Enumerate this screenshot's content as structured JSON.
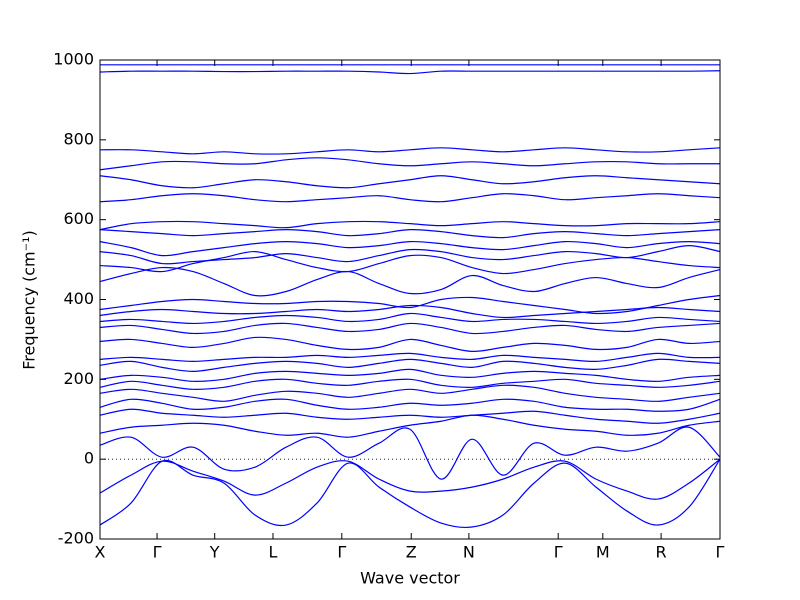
{
  "chart_data": {
    "type": "line",
    "xlabel": "Wave vector",
    "ylabel": "Frequency (cm⁻¹)",
    "color": "#0000ff",
    "xlim": [
      0,
      10
    ],
    "ylim": [
      -200,
      1000
    ],
    "xticks": [
      {
        "value": 0,
        "label": "X"
      },
      {
        "value": 0.92,
        "label": "Γ"
      },
      {
        "value": 1.85,
        "label": "Y"
      },
      {
        "value": 2.79,
        "label": "L"
      },
      {
        "value": 3.9,
        "label": "Γ"
      },
      {
        "value": 5.02,
        "label": "Z"
      },
      {
        "value": 5.95,
        "label": "N"
      },
      {
        "value": 7.39,
        "label": "Γ"
      },
      {
        "value": 8.11,
        "label": "M"
      },
      {
        "value": 9.05,
        "label": "R"
      },
      {
        "value": 10,
        "label": "Γ"
      }
    ],
    "yticks": [
      -200,
      0,
      200,
      400,
      600,
      800,
      1000
    ],
    "reference_line": 0,
    "x": [
      0,
      0.5,
      1,
      1.5,
      2,
      2.5,
      3,
      3.5,
      4,
      4.5,
      5,
      5.5,
      6,
      6.5,
      7,
      7.5,
      8,
      8.5,
      9,
      9.5,
      10
    ],
    "series": [
      {
        "values": [
          -165,
          -110,
          -5,
          -40,
          -60,
          -140,
          -165,
          -110,
          -10,
          -70,
          -120,
          -160,
          -170,
          -140,
          -60,
          -10,
          -70,
          -130,
          -165,
          -120,
          0
        ]
      },
      {
        "values": [
          -85,
          -40,
          -5,
          -30,
          -55,
          -90,
          -60,
          -20,
          -5,
          -50,
          -80,
          -80,
          -70,
          -50,
          -20,
          -5,
          -50,
          -80,
          -100,
          -60,
          0
        ]
      },
      {
        "values": [
          35,
          55,
          5,
          30,
          -25,
          -20,
          30,
          55,
          5,
          40,
          75,
          -50,
          50,
          -40,
          40,
          10,
          30,
          20,
          40,
          80,
          5
        ]
      },
      {
        "values": [
          65,
          80,
          85,
          90,
          85,
          70,
          60,
          65,
          55,
          70,
          85,
          95,
          110,
          100,
          85,
          75,
          70,
          60,
          65,
          85,
          95
        ]
      },
      {
        "values": [
          110,
          125,
          115,
          110,
          105,
          110,
          115,
          105,
          100,
          105,
          110,
          105,
          110,
          115,
          120,
          110,
          100,
          95,
          90,
          100,
          115
        ]
      },
      {
        "values": [
          130,
          150,
          140,
          125,
          130,
          145,
          150,
          135,
          125,
          130,
          140,
          135,
          140,
          150,
          145,
          130,
          125,
          125,
          120,
          125,
          150
        ]
      },
      {
        "values": [
          165,
          175,
          165,
          155,
          145,
          160,
          170,
          165,
          155,
          165,
          175,
          165,
          175,
          185,
          180,
          165,
          155,
          150,
          145,
          155,
          165
        ]
      },
      {
        "values": [
          180,
          195,
          185,
          175,
          180,
          195,
          200,
          190,
          185,
          195,
          200,
          185,
          180,
          190,
          195,
          200,
          190,
          185,
          180,
          185,
          195
        ]
      },
      {
        "values": [
          200,
          210,
          205,
          195,
          200,
          215,
          220,
          215,
          210,
          215,
          225,
          210,
          205,
          215,
          220,
          215,
          210,
          200,
          195,
          205,
          210
        ]
      },
      {
        "values": [
          235,
          245,
          230,
          220,
          230,
          240,
          245,
          240,
          230,
          240,
          250,
          240,
          230,
          245,
          240,
          230,
          225,
          235,
          250,
          245,
          240
        ]
      },
      {
        "values": [
          250,
          255,
          250,
          245,
          250,
          255,
          255,
          260,
          255,
          260,
          265,
          255,
          250,
          260,
          255,
          250,
          245,
          255,
          265,
          255,
          255
        ]
      },
      {
        "values": [
          295,
          300,
          290,
          280,
          290,
          305,
          300,
          285,
          275,
          280,
          300,
          285,
          270,
          280,
          290,
          285,
          275,
          280,
          300,
          290,
          295
        ]
      },
      {
        "values": [
          330,
          335,
          325,
          315,
          320,
          335,
          340,
          330,
          320,
          325,
          340,
          330,
          315,
          320,
          330,
          335,
          325,
          320,
          330,
          335,
          340
        ]
      },
      {
        "values": [
          345,
          350,
          345,
          340,
          345,
          355,
          360,
          355,
          345,
          350,
          365,
          355,
          345,
          350,
          350,
          345,
          340,
          345,
          355,
          350,
          345
        ]
      },
      {
        "values": [
          360,
          370,
          375,
          370,
          365,
          365,
          370,
          375,
          370,
          375,
          385,
          380,
          365,
          355,
          360,
          365,
          370,
          375,
          380,
          375,
          370
        ]
      },
      {
        "values": [
          375,
          385,
          395,
          400,
          395,
          390,
          390,
          395,
          395,
          390,
          380,
          400,
          405,
          395,
          385,
          375,
          365,
          370,
          385,
          400,
          410
        ]
      },
      {
        "values": [
          445,
          465,
          480,
          470,
          440,
          410,
          420,
          450,
          470,
          440,
          415,
          425,
          460,
          435,
          420,
          440,
          455,
          440,
          430,
          455,
          475
        ]
      },
      {
        "values": [
          485,
          480,
          470,
          490,
          505,
          520,
          500,
          480,
          470,
          490,
          510,
          505,
          480,
          465,
          475,
          490,
          500,
          505,
          495,
          485,
          480
        ]
      },
      {
        "values": [
          520,
          510,
          490,
          495,
          500,
          505,
          515,
          505,
          495,
          510,
          525,
          520,
          505,
          500,
          510,
          520,
          515,
          505,
          520,
          535,
          520
        ]
      },
      {
        "values": [
          545,
          530,
          510,
          520,
          530,
          540,
          545,
          540,
          530,
          535,
          545,
          540,
          530,
          525,
          535,
          545,
          540,
          530,
          540,
          545,
          540
        ]
      },
      {
        "values": [
          575,
          570,
          565,
          560,
          565,
          570,
          575,
          570,
          560,
          565,
          575,
          570,
          560,
          555,
          565,
          570,
          565,
          560,
          565,
          570,
          575
        ]
      },
      {
        "values": [
          575,
          590,
          595,
          595,
          590,
          585,
          580,
          590,
          595,
          595,
          590,
          585,
          590,
          595,
          590,
          585,
          585,
          590,
          590,
          590,
          595
        ]
      },
      {
        "values": [
          645,
          650,
          660,
          665,
          660,
          650,
          645,
          650,
          655,
          660,
          650,
          645,
          655,
          665,
          660,
          650,
          655,
          660,
          665,
          660,
          655
        ]
      },
      {
        "values": [
          710,
          700,
          685,
          680,
          690,
          700,
          695,
          685,
          680,
          690,
          700,
          710,
          700,
          690,
          695,
          705,
          710,
          705,
          700,
          695,
          690
        ]
      },
      {
        "values": [
          725,
          735,
          745,
          745,
          740,
          740,
          750,
          755,
          750,
          740,
          735,
          740,
          745,
          740,
          735,
          740,
          745,
          745,
          740,
          740,
          740
        ]
      },
      {
        "values": [
          775,
          775,
          770,
          765,
          770,
          765,
          765,
          770,
          775,
          770,
          775,
          780,
          775,
          770,
          775,
          780,
          775,
          770,
          770,
          775,
          780
        ]
      },
      {
        "values": [
          970,
          972,
          972,
          972,
          971,
          971,
          972,
          972,
          972,
          970,
          966,
          972,
          972,
          972,
          972,
          972,
          972,
          972,
          972,
          972,
          973
        ]
      },
      {
        "values": [
          988,
          988,
          988,
          988,
          988,
          988,
          988,
          988,
          988,
          988,
          988,
          988,
          988,
          988,
          988,
          988,
          988,
          988,
          988,
          988,
          988
        ]
      }
    ]
  }
}
